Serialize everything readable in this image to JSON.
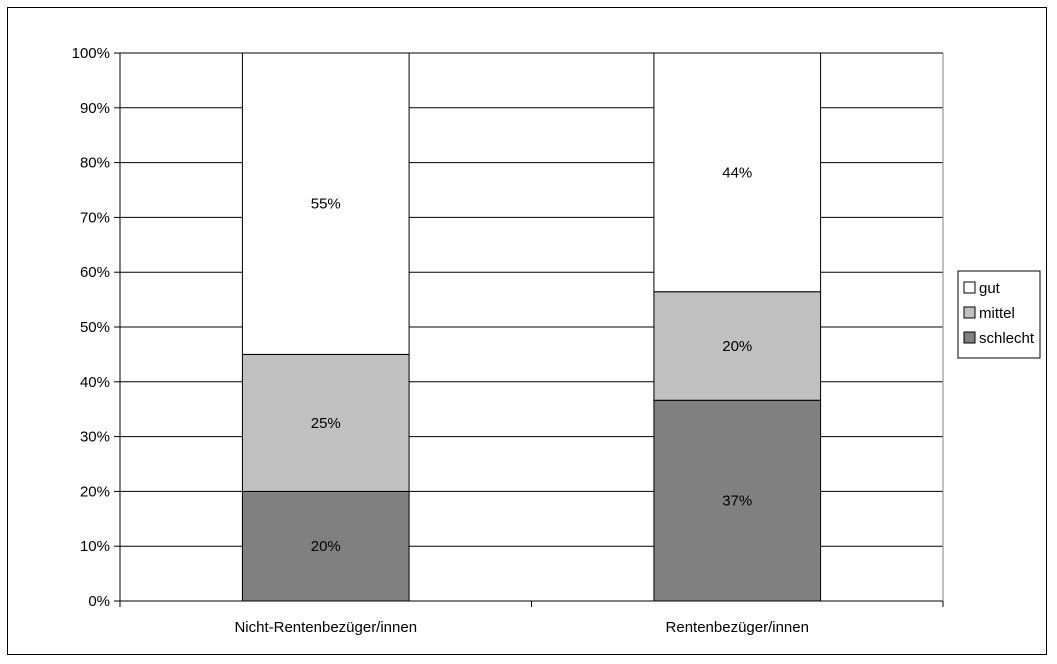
{
  "chart_data": {
    "type": "bar",
    "stacked": true,
    "percent": true,
    "categories": [
      "Nicht-Rentenbezüger/innen",
      "Rentenbezüger/innen"
    ],
    "series": [
      {
        "name": "schlecht",
        "values": [
          20,
          37
        ],
        "labels": [
          "20%",
          "37%"
        ],
        "color": "#808080"
      },
      {
        "name": "mittel",
        "values": [
          25,
          20
        ],
        "labels": [
          "25%",
          "20%"
        ],
        "color": "#c0c0c0"
      },
      {
        "name": "gut",
        "values": [
          55,
          44
        ],
        "labels": [
          "55%",
          "44%"
        ],
        "color": "#ffffff"
      }
    ],
    "ylim": [
      0,
      100
    ],
    "yticks": [
      "0%",
      "10%",
      "20%",
      "30%",
      "40%",
      "50%",
      "60%",
      "70%",
      "80%",
      "90%",
      "100%"
    ],
    "legend": {
      "position": "right",
      "order": [
        "gut",
        "mittel",
        "schlecht"
      ]
    },
    "grid": true,
    "gridColor": "#000000",
    "title": "",
    "xlabel": "",
    "ylabel": ""
  }
}
